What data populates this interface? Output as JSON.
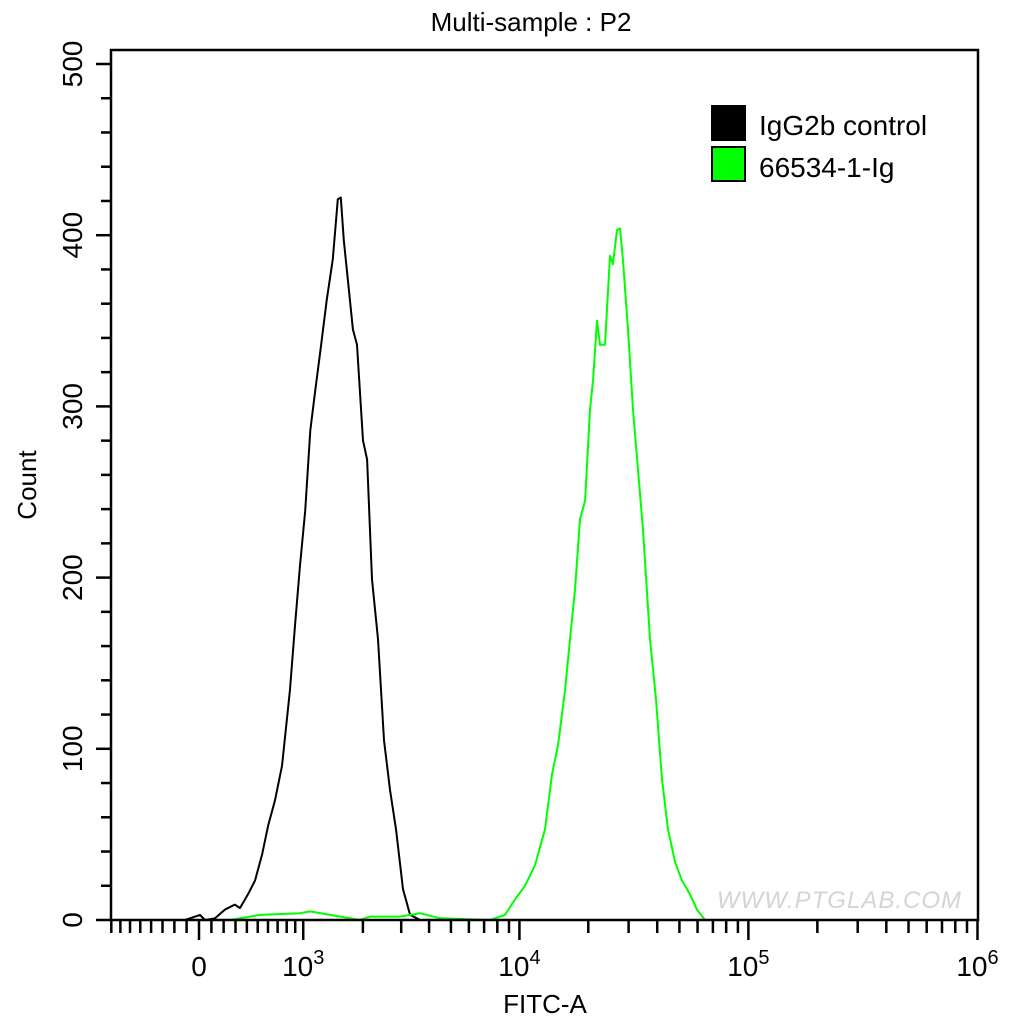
{
  "chart_data": {
    "type": "line",
    "title": "Multi-sample : P2",
    "xlabel": "FITC-A",
    "ylabel": "Count",
    "x_scale": "biexponential",
    "xlim": [
      -805,
      1000000
    ],
    "ylim": [
      0,
      500
    ],
    "grid": false,
    "legend_placement": "top-right",
    "x_tick_labels": [
      {
        "value": 0,
        "base": "0",
        "exp": ""
      },
      {
        "value": 1000,
        "base": "10",
        "exp": "3"
      },
      {
        "value": 10000,
        "base": "10",
        "exp": "4"
      },
      {
        "value": 100000,
        "base": "10",
        "exp": "5"
      },
      {
        "value": 1000000,
        "base": "10",
        "exp": "6"
      }
    ],
    "y_ticks": [
      0,
      100,
      200,
      300,
      400,
      500
    ],
    "y_tick_labels": [
      "0",
      "100",
      "200",
      "300",
      "400",
      "500"
    ],
    "series": [
      {
        "name": "IgG2b control",
        "color": "#000000",
        "points": [
          [
            -113,
            0
          ],
          [
            8,
            3
          ],
          [
            48,
            0
          ],
          [
            129,
            1
          ],
          [
            210,
            6
          ],
          [
            293,
            9
          ],
          [
            339,
            7
          ],
          [
            410,
            15
          ],
          [
            474,
            23
          ],
          [
            541,
            38
          ],
          [
            601,
            55
          ],
          [
            672,
            70
          ],
          [
            747,
            90
          ],
          [
            837,
            134
          ],
          [
            897,
            172
          ],
          [
            959,
            207
          ],
          [
            1025,
            239
          ],
          [
            1093,
            286
          ],
          [
            1164,
            310
          ],
          [
            1239,
            333
          ],
          [
            1332,
            362
          ],
          [
            1430,
            386
          ],
          [
            1514,
            421
          ],
          [
            1568,
            422
          ],
          [
            1621,
            397
          ],
          [
            1715,
            368
          ],
          [
            1794,
            345
          ],
          [
            1875,
            336
          ],
          [
            2003,
            280
          ],
          [
            2093,
            269
          ],
          [
            2206,
            199
          ],
          [
            2350,
            164
          ],
          [
            2505,
            105
          ],
          [
            2670,
            76
          ],
          [
            2841,
            53
          ],
          [
            3056,
            18
          ],
          [
            3289,
            3
          ],
          [
            3648,
            0
          ]
        ]
      },
      {
        "name": "66534-1-Ig",
        "color": "#00ff00",
        "points": [
          [
            253,
            0
          ],
          [
            522,
            3
          ],
          [
            959,
            4
          ],
          [
            1093,
            5
          ],
          [
            1386,
            3
          ],
          [
            1937,
            0
          ],
          [
            2160,
            2
          ],
          [
            2962,
            2
          ],
          [
            3648,
            4
          ],
          [
            4471,
            1
          ],
          [
            7431,
            0
          ],
          [
            8640,
            3
          ],
          [
            9560,
            12
          ],
          [
            10580,
            20
          ],
          [
            11700,
            32
          ],
          [
            12940,
            53
          ],
          [
            13880,
            85
          ],
          [
            14750,
            102
          ],
          [
            15830,
            134
          ],
          [
            16640,
            164
          ],
          [
            17500,
            193
          ],
          [
            18400,
            234
          ],
          [
            19360,
            245
          ],
          [
            20350,
            298
          ],
          [
            20970,
            315
          ],
          [
            21840,
            350
          ],
          [
            22500,
            336
          ],
          [
            23660,
            336
          ],
          [
            24870,
            388
          ],
          [
            25620,
            383
          ],
          [
            26700,
            403
          ],
          [
            27520,
            404
          ],
          [
            28340,
            386
          ],
          [
            29830,
            345
          ],
          [
            31360,
            298
          ],
          [
            32970,
            263
          ],
          [
            34660,
            228
          ],
          [
            37200,
            164
          ],
          [
            39500,
            129
          ],
          [
            41950,
            82
          ],
          [
            44580,
            53
          ],
          [
            47830,
            34
          ],
          [
            51300,
            23
          ],
          [
            55600,
            15
          ],
          [
            59650,
            6
          ],
          [
            64640,
            0
          ]
        ]
      }
    ],
    "watermark": "WWW.PTGLAB.COM"
  }
}
